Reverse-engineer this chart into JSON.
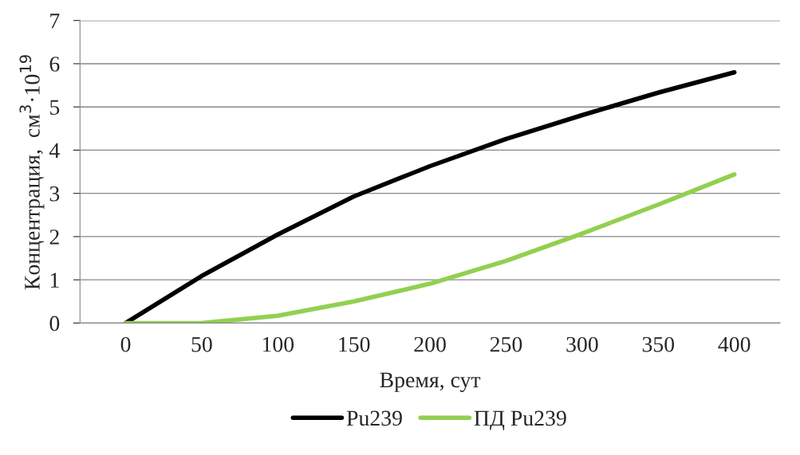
{
  "chart_data": {
    "type": "line",
    "xlabel": "Время, сут",
    "ylabel": "Концентрация,  см$^{3}$·10$^{19}$",
    "categories": [
      "0",
      "50",
      "100",
      "150",
      "200",
      "250",
      "300",
      "350",
      "400"
    ],
    "series": [
      {
        "name": "Pu239",
        "color": "#000000",
        "values": [
          0,
          1.09,
          2.05,
          2.93,
          3.63,
          4.26,
          4.81,
          5.33,
          5.8
        ]
      },
      {
        "name": "ПД Pu239",
        "color": "#92d050",
        "values": [
          0,
          0,
          0.17,
          0.5,
          0.91,
          1.44,
          2.07,
          2.74,
          3.44
        ]
      }
    ],
    "ylim": [
      0,
      7
    ],
    "yticks": [
      0,
      1,
      2,
      3,
      4,
      5,
      6,
      7
    ],
    "grid": "y",
    "legend": "bottom",
    "marker": "none",
    "line_style": "solid"
  }
}
